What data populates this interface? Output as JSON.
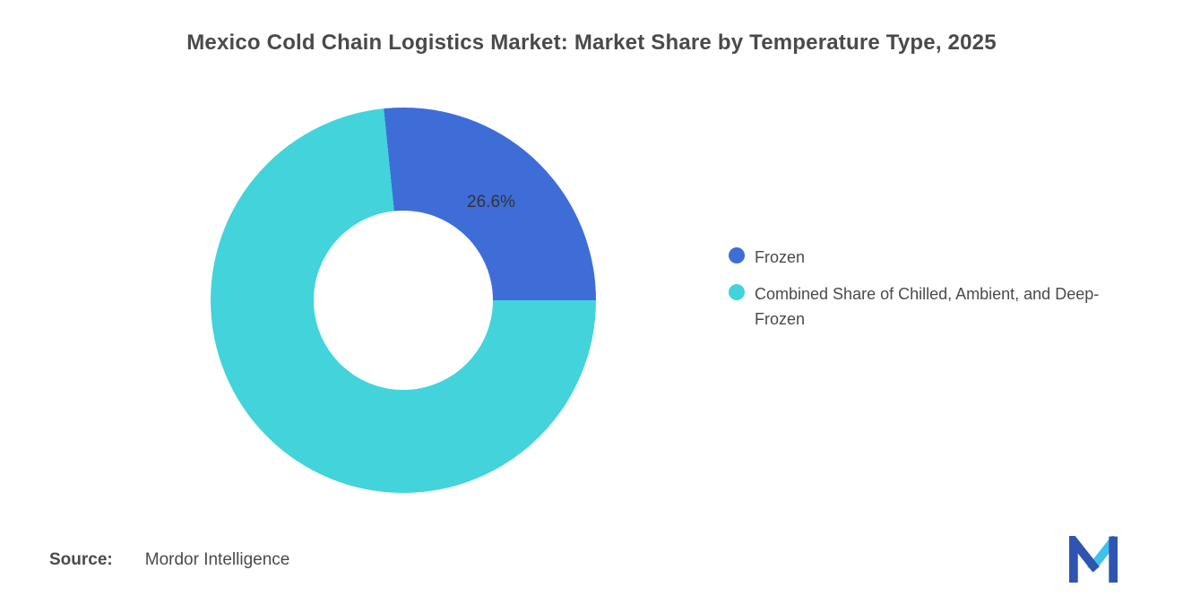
{
  "title": "Mexico Cold Chain Logistics Market: Market Share by Temperature Type, 2025",
  "chart_data": {
    "type": "pie",
    "subtype": "donut",
    "title": "Mexico Cold Chain Logistics Market: Market Share by Temperature Type, 2025",
    "unit": "%",
    "series": [
      {
        "name": "Frozen",
        "value": 26.6,
        "color": "#3e6dd8",
        "data_label": "26.6%"
      },
      {
        "name": "Combined Share of Chilled, Ambient, and Deep-Frozen",
        "value": 73.4,
        "color": "#43d3db",
        "data_label": ""
      }
    ],
    "start_angle_deg": -5.8,
    "inner_radius_ratio": 0.465,
    "legend_position": "right",
    "grid": false
  },
  "legend": {
    "items": [
      {
        "label": "Frozen",
        "color": "#3e6dd8"
      },
      {
        "label": "Combined Share of Chilled, Ambient, and Deep-Frozen",
        "color": "#43d3db"
      }
    ]
  },
  "source": {
    "prefix": "Source:",
    "text": "Mordor Intelligence"
  },
  "logo": {
    "name": "mordor-intelligence-logo",
    "colors": {
      "dark": "#2f55b0",
      "light": "#3ec1ee"
    }
  }
}
